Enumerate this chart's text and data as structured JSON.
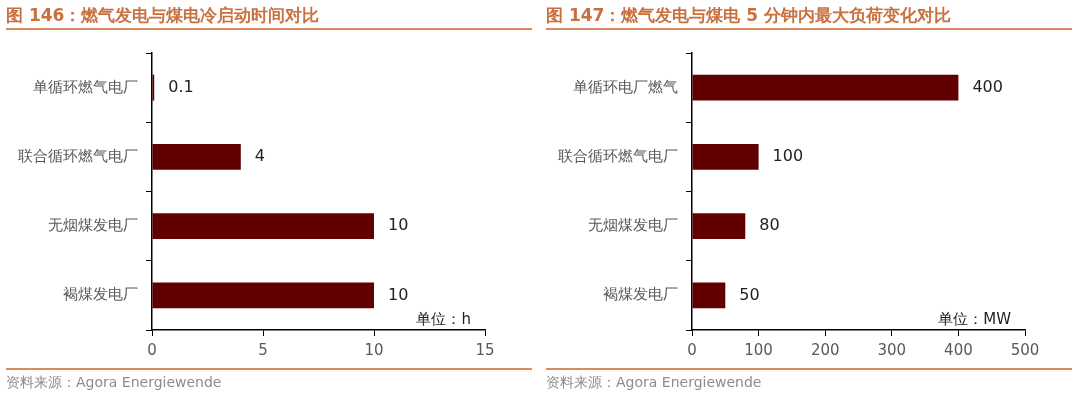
{
  "chart_data": [
    {
      "type": "bar",
      "orientation": "horizontal",
      "title": "图 146：燃气发电与煤电冷启动时间对比",
      "categories": [
        "单循环燃气电厂",
        "联合循环燃气电厂",
        "无烟煤发电厂",
        "褐煤发电厂"
      ],
      "values": [
        0.1,
        4,
        10,
        10
      ],
      "color": "#600000",
      "xlim": [
        0,
        15
      ],
      "xticks": [
        0,
        5,
        10,
        15
      ],
      "data_labels": true,
      "grid": false,
      "legend": false,
      "annotations": [
        "单位：h",
        "资料来源：Agora Energiewende"
      ]
    },
    {
      "type": "bar",
      "orientation": "horizontal",
      "title": "图 147：燃气发电与煤电 5 分钟内最大负荷变化对比",
      "categories": [
        "单循环电厂燃气",
        "联合循环燃气电厂",
        "无烟煤发电厂",
        "褐煤发电厂"
      ],
      "values": [
        400,
        100,
        80,
        50
      ],
      "color": "#600000",
      "xlim": [
        0,
        500
      ],
      "xticks": [
        0,
        100,
        200,
        300,
        400,
        500
      ],
      "data_labels": true,
      "grid": false,
      "legend": false,
      "annotations": [
        "单位：MW",
        "资料来源：Agora Energiewende"
      ]
    }
  ]
}
